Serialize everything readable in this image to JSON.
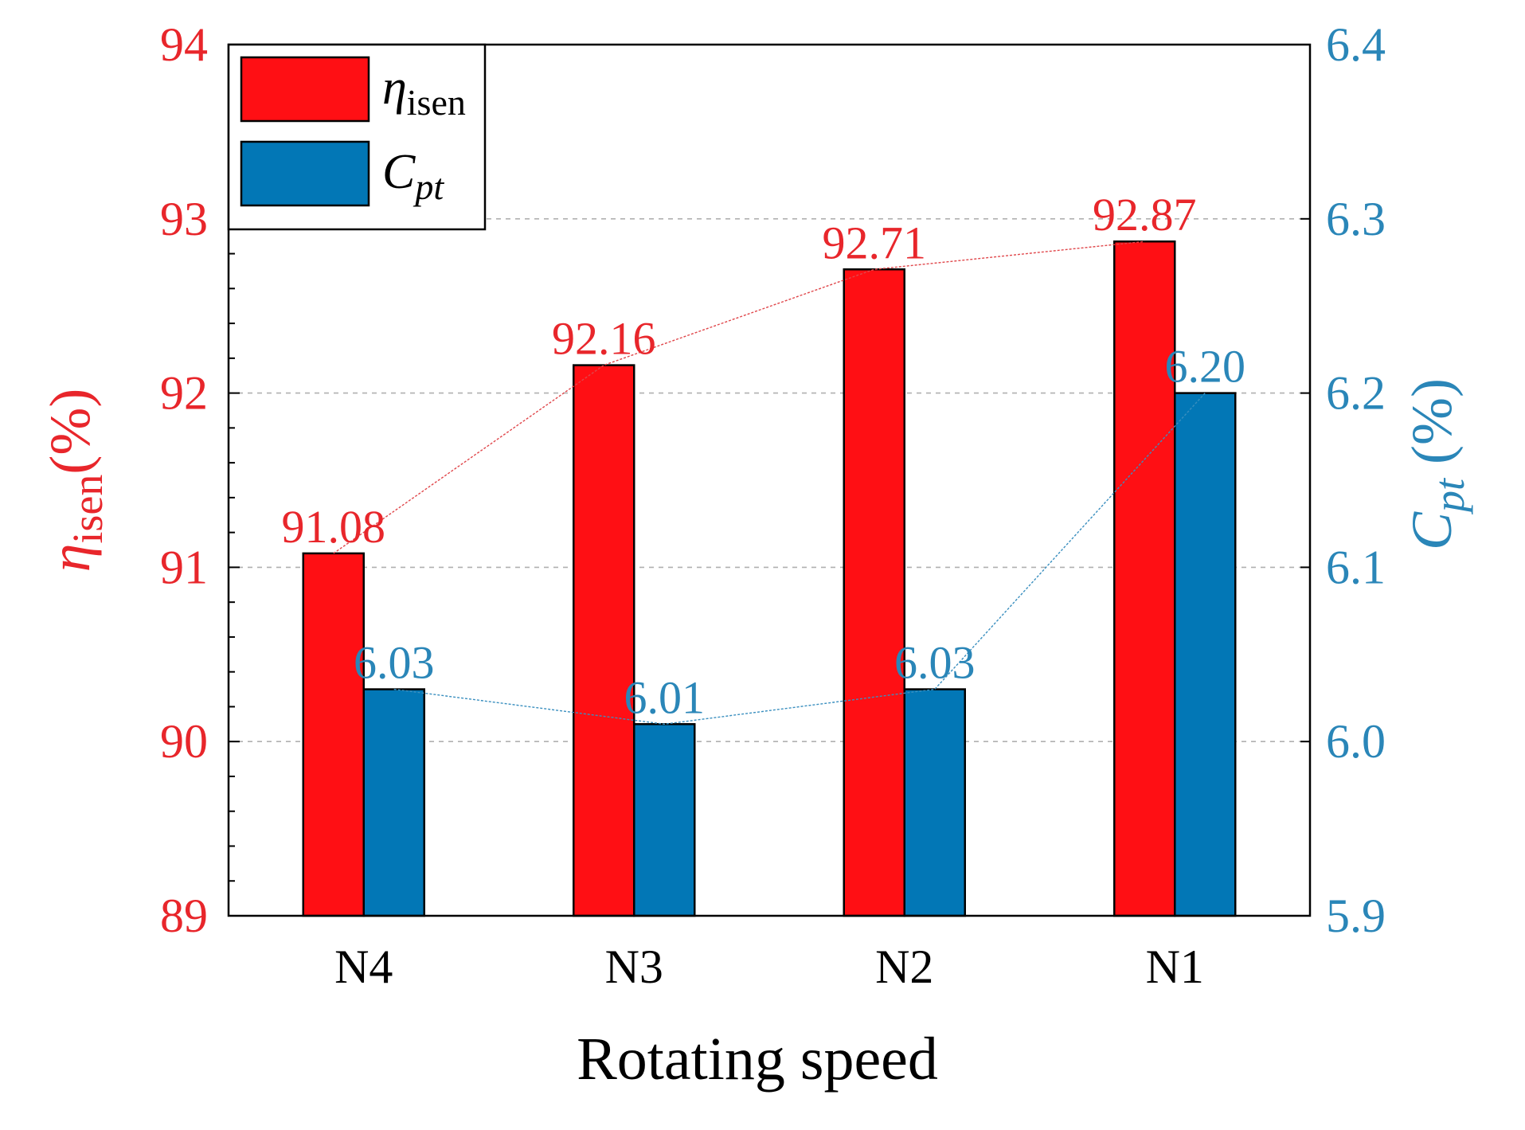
{
  "chart_data": {
    "type": "bar",
    "categories": [
      "N4",
      "N3",
      "N2",
      "N1"
    ],
    "xlabel": "Rotating speed",
    "series": [
      {
        "name": "η_isen",
        "legend_symbol": "η",
        "legend_subscript": "isen",
        "axis": "left",
        "values": [
          91.08,
          92.16,
          92.71,
          92.87
        ],
        "labels": [
          "91.08",
          "92.16",
          "92.71",
          "92.87"
        ],
        "color": "#ff0f14"
      },
      {
        "name": "C_pt",
        "legend_symbol": "C",
        "legend_subscript": "pt",
        "axis": "right",
        "values": [
          6.03,
          6.01,
          6.03,
          6.2
        ],
        "labels": [
          "6.03",
          "6.01",
          "6.03",
          "6.20"
        ],
        "color": "#0277b6"
      }
    ],
    "y_left": {
      "label_symbol": "η",
      "label_subscript": "isen",
      "label_unit": "(%)",
      "ylim": [
        89,
        94
      ],
      "ticks": [
        "89",
        "90",
        "91",
        "92",
        "93",
        "94"
      ],
      "color": "#e8262b"
    },
    "y_right": {
      "label_symbol": "C",
      "label_subscript": "pt",
      "label_unit": " (%)",
      "ylim": [
        5.9,
        6.4
      ],
      "ticks": [
        "5.9",
        "6.0",
        "6.1",
        "6.2",
        "6.3",
        "6.4"
      ],
      "color": "#2a86b8"
    },
    "grid": "dashed horizontal at 90, 91, 92, 93",
    "legend": "top-left"
  }
}
